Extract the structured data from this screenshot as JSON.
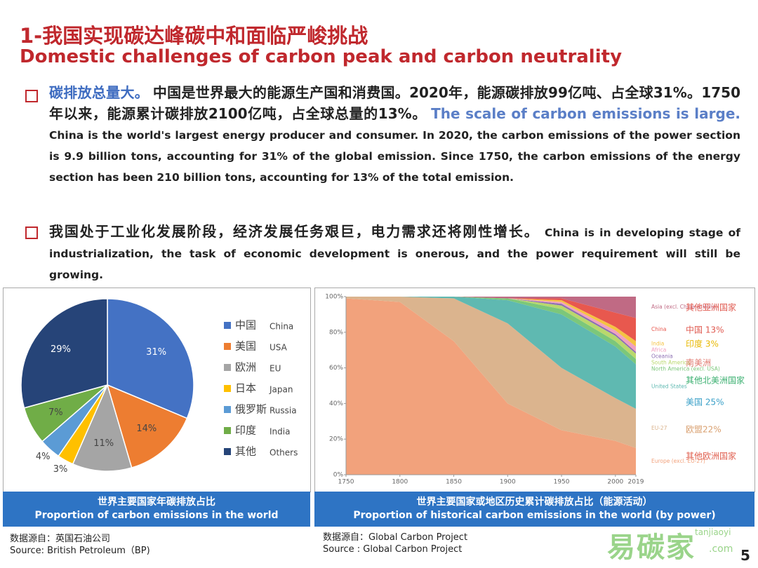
{
  "header": {
    "title_cn": "1-我国实现碳达峰碳中和面临严峻挑战",
    "title_en": "Domestic challenges of carbon peak and carbon neutrality"
  },
  "bullets": [
    {
      "parts": [
        {
          "text": "碳排放总量大。",
          "style": "cn-highlight"
        },
        {
          "text": "中国是世界最大的能源生产国和消费国。2020年，能源碳排放99亿吨、占全球31%。1750年以来，能源累计碳排放2100亿吨，占全球总量的13%。",
          "style": "cn"
        },
        {
          "text": "The scale of carbon emissions is large.",
          "style": "en-highlight"
        },
        {
          "text": "China is the world's largest energy producer and consumer.  In 2020, the carbon emissions of the power section is 9.9 billion tons, accounting for 31% of the global emission.  Since 1750, the carbon emissions of the energy section has been 210 billion tons, accounting for 13% of the total emission.",
          "style": "en"
        }
      ]
    },
    {
      "parts": [
        {
          "text": "我国处于工业化发展阶段，经济发展任务艰巨，电力需求还将刚性增长。",
          "style": "cn"
        },
        {
          "text": "China is in developing stage of industrialization, the task of economic development is onerous, and the power requirement will still be growing.",
          "style": "en"
        }
      ]
    }
  ],
  "chart_data": [
    {
      "type": "pie",
      "caption_cn": "世界主要国家年碳排放占比",
      "caption_en": "Proportion of carbon emissions in the world",
      "categories": [
        "中国",
        "美国",
        "欧洲",
        "日本",
        "俄罗斯",
        "印度",
        "其他"
      ],
      "categories_en": [
        "China",
        "USA",
        "EU",
        "Japan",
        "Russia",
        "India",
        "Others"
      ],
      "values": [
        31,
        14,
        11,
        3,
        4,
        7,
        29
      ],
      "value_labels": [
        "31%",
        "14%",
        "11%",
        "3%",
        "4%",
        "7%",
        "29%"
      ],
      "colors": [
        "#4472c4",
        "#ed7d31",
        "#a5a5a5",
        "#ffc000",
        "#5b9bd5",
        "#70ad47",
        "#264478"
      ],
      "source_cn": "数据源自：英国石油公司",
      "source_en": "Source: British Petroleum（BP)"
    },
    {
      "type": "stacked-area",
      "caption_cn": "世界主要国家或地区历史累计碳排放占比（能源活动）",
      "caption_en": "Proportion of  historical carbon emissions in the world (by power)",
      "x": [
        1750,
        1800,
        1850,
        1900,
        1950,
        2000,
        2019
      ],
      "xlim": [
        1750,
        2019
      ],
      "xticks": [
        1750,
        1800,
        1850,
        1900,
        1950,
        2000,
        2019
      ],
      "ylim": [
        0,
        100
      ],
      "yticks": [
        {
          "value": 0,
          "label": "0%"
        },
        {
          "value": 20,
          "label": "20%"
        },
        {
          "value": 40,
          "label": "40%"
        },
        {
          "value": 60,
          "label": "60%"
        },
        {
          "value": 80,
          "label": "80%"
        },
        {
          "value": 100,
          "label": "100%"
        }
      ],
      "series": [
        {
          "name": "Europe (excl. EU-27)",
          "color": "#f2a27c",
          "values": [
            99,
            97,
            75,
            40,
            25,
            19,
            15
          ]
        },
        {
          "name": "EU-27",
          "color": "#dbb48e",
          "values": [
            1,
            3,
            24,
            45,
            35,
            24,
            22
          ]
        },
        {
          "name": "United States",
          "color": "#5fb9b1",
          "values": [
            0,
            0,
            1,
            13,
            30,
            29,
            25
          ]
        },
        {
          "name": "North America (excl. USA)",
          "color": "#7cc77a",
          "values": [
            0,
            0,
            0,
            1,
            3,
            3,
            3
          ]
        },
        {
          "name": "South America",
          "color": "#b9d86c",
          "values": [
            0,
            0,
            0,
            0,
            2,
            3,
            3
          ]
        },
        {
          "name": "Oceania",
          "color": "#8d6fb3",
          "values": [
            0,
            0,
            0,
            0,
            1,
            1,
            1
          ]
        },
        {
          "name": "Africa",
          "color": "#f0a0c0",
          "values": [
            0,
            0,
            0,
            0,
            1,
            2,
            3
          ]
        },
        {
          "name": "India",
          "color": "#f5c342",
          "values": [
            0,
            0,
            0,
            0,
            1,
            2,
            3
          ]
        },
        {
          "name": "China",
          "color": "#e8584e",
          "values": [
            0,
            0,
            0,
            0,
            1,
            8,
            13
          ]
        },
        {
          "name": "Asia (excl. China & India)",
          "color": "#c06a84",
          "values": [
            0,
            0,
            0,
            1,
            1,
            9,
            12
          ]
        }
      ],
      "annotations": [
        {
          "text": "其他亚洲国家",
          "color": "#e05a50"
        },
        {
          "text": "中国 13%",
          "color": "#e05a50"
        },
        {
          "text": "印度 3%",
          "color": "#e8b800"
        },
        {
          "text": "南美洲",
          "color": "#e07a70"
        },
        {
          "text": "其他北美洲国家",
          "color": "#3bb070"
        },
        {
          "text": "美国 25%",
          "color": "#3aa0c8"
        },
        {
          "text": "欧盟22%",
          "color": "#d9a070"
        },
        {
          "text": "其他欧洲国家",
          "color": "#e06050"
        }
      ],
      "source_cn": "数据源自：Global Carbon Project",
      "source_en": "Source : Global Carbon Project"
    }
  ],
  "footer": {
    "logo": "易碳家",
    "logo_sub": "tanjiaoyi",
    "logo_domain": ".com",
    "page": "5"
  }
}
